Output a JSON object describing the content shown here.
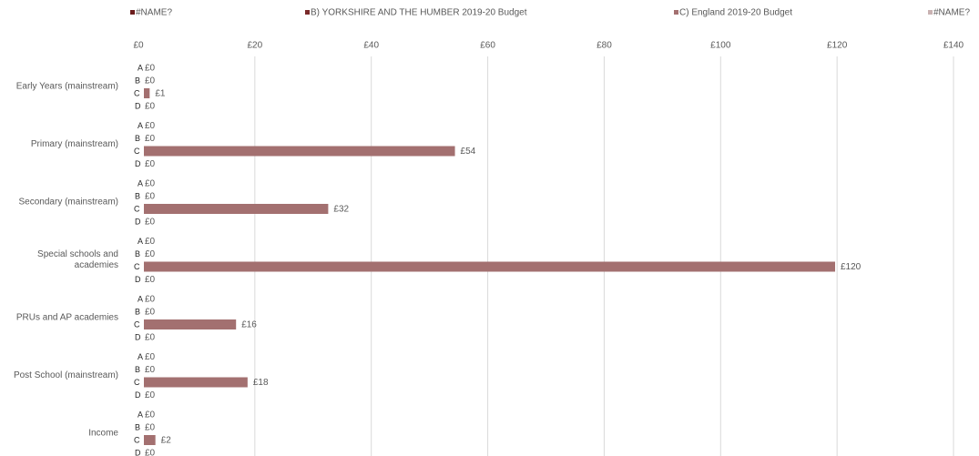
{
  "chart_data": {
    "type": "bar",
    "orientation": "horizontal",
    "legend": [
      {
        "label": "#NAME?",
        "color": "#6b1c1c"
      },
      {
        "label": "B) YORKSHIRE AND THE HUMBER  2019-20 Budget",
        "color": "#7a2a2a"
      },
      {
        "label": "C) England 2019-20 Budget",
        "color": "#a37070"
      },
      {
        "label": "#NAME?",
        "color": "#c9b2b2"
      }
    ],
    "legend_position": "top",
    "x_axis": {
      "position": "top",
      "min": 0,
      "max": 140,
      "ticks": [
        {
          "value": 0,
          "label": "£0"
        },
        {
          "value": 20,
          "label": "£20"
        },
        {
          "value": 40,
          "label": "£40"
        },
        {
          "value": 60,
          "label": "£60"
        },
        {
          "value": 80,
          "label": "£80"
        },
        {
          "value": 100,
          "label": "£100"
        },
        {
          "value": 120,
          "label": "£120"
        },
        {
          "value": 140,
          "label": "£140"
        }
      ],
      "grid": true
    },
    "series_letters": [
      "A",
      "B",
      "C",
      "D"
    ],
    "categories": [
      {
        "label": [
          "Early Years (mainstream)"
        ],
        "values": [
          0,
          0,
          1,
          0
        ],
        "labels": [
          "£0",
          "£0",
          "£1",
          "£0"
        ]
      },
      {
        "label": [
          "Primary (mainstream)"
        ],
        "values": [
          0,
          0,
          54,
          0
        ],
        "labels": [
          "£0",
          "£0",
          "£54",
          "£0"
        ]
      },
      {
        "label": [
          "Secondary (mainstream)"
        ],
        "values": [
          0,
          0,
          32,
          0
        ],
        "labels": [
          "£0",
          "£0",
          "£32",
          "£0"
        ]
      },
      {
        "label": [
          "Special schools and",
          "academies"
        ],
        "values": [
          0,
          0,
          120,
          0
        ],
        "labels": [
          "£0",
          "£0",
          "£120",
          "£0"
        ]
      },
      {
        "label": [
          "PRUs and AP academies"
        ],
        "values": [
          0,
          0,
          16,
          0
        ],
        "labels": [
          "£0",
          "£0",
          "£16",
          "£0"
        ]
      },
      {
        "label": [
          "Post School (mainstream)"
        ],
        "values": [
          0,
          0,
          18,
          0
        ],
        "labels": [
          "£0",
          "£0",
          "£18",
          "£0"
        ]
      },
      {
        "label": [
          "Income"
        ],
        "values": [
          0,
          0,
          2,
          0
        ],
        "labels": [
          "£0",
          "£0",
          "£2",
          "£0"
        ]
      }
    ]
  }
}
